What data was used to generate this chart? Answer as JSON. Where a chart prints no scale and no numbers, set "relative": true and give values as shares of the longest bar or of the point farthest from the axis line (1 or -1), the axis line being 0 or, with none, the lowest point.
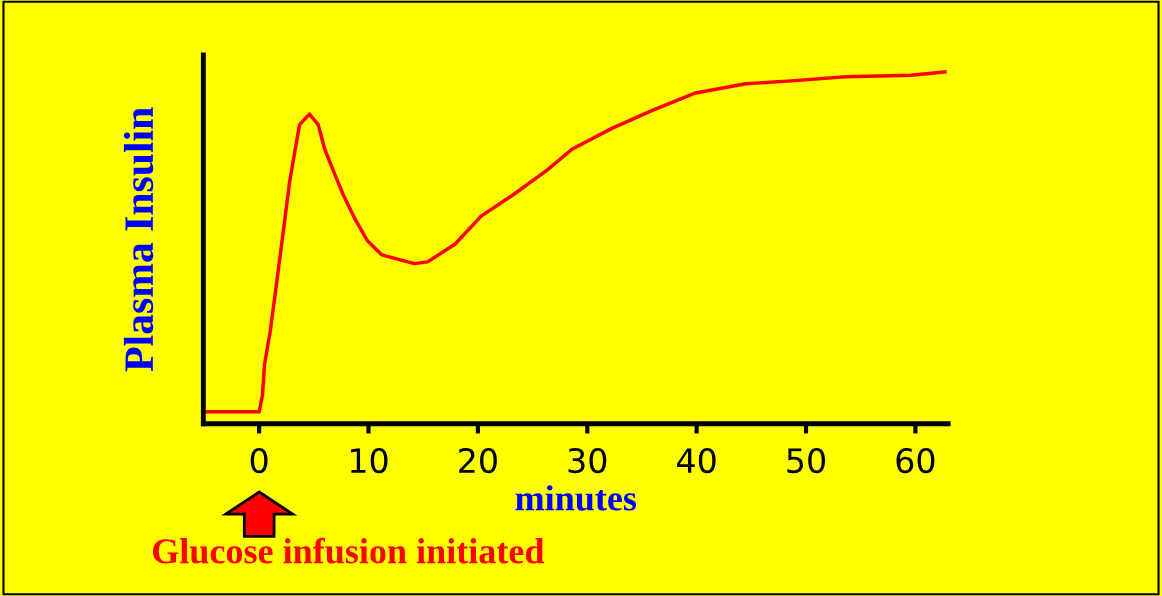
{
  "chart_data": {
    "type": "line",
    "relative": true,
    "xlabel": "minutes",
    "ylabel": "Plasma Insulin",
    "xlim": [
      -5.1,
      63
    ],
    "xticks": [
      0,
      10,
      20,
      30,
      40,
      50,
      60
    ],
    "series": [
      {
        "color": "#ff0000",
        "x": [
          -4.9,
          0,
          0.3,
          0.5,
          1.0,
          1.6,
          2.1,
          2.8,
          3.3,
          3.7,
          4.6,
          5.4,
          6.0,
          6.9,
          7.7,
          8.8,
          9.9,
          11.2,
          12.4,
          14.2,
          15.4,
          17.9,
          20.3,
          23.2,
          26.3,
          28.6,
          32.3,
          35.9,
          39.9,
          44.5,
          49.0,
          53.6,
          59.6,
          62.7
        ],
        "values": [
          0.034,
          0.034,
          0.08,
          0.17,
          0.26,
          0.4,
          0.52,
          0.69,
          0.78,
          0.85,
          0.88,
          0.85,
          0.78,
          0.71,
          0.65,
          0.58,
          0.52,
          0.48,
          0.47,
          0.455,
          0.46,
          0.51,
          0.59,
          0.65,
          0.72,
          0.78,
          0.84,
          0.89,
          0.94,
          0.966,
          0.975,
          0.986,
          0.99,
          1.0
        ]
      }
    ],
    "annotations": [
      "Glucose infusion initiated"
    ],
    "grid": false,
    "legend": false
  }
}
